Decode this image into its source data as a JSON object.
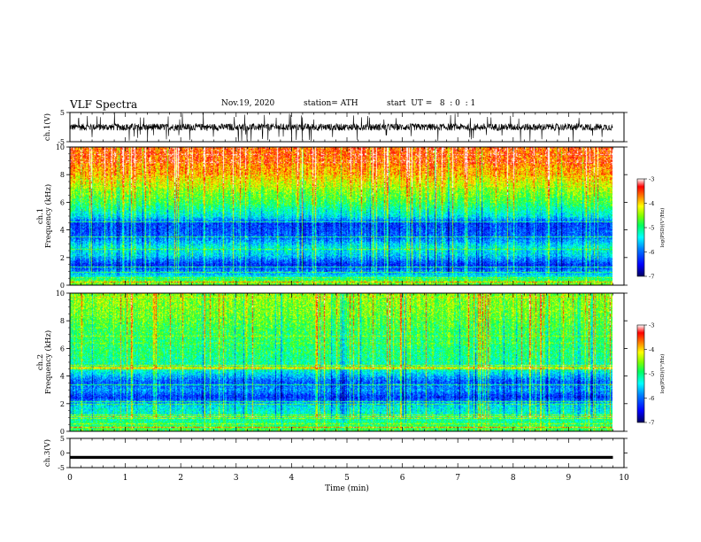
{
  "header": {
    "title": "VLF Spectra",
    "date": "Nov.19, 2020",
    "station": "station= ATH",
    "start": "start  UT =   8  : 0  : 1"
  },
  "colors": {
    "background": "#ffffff",
    "axis": "#000000",
    "trace": "#000000",
    "colormap": [
      "#000080",
      "#0000ff",
      "#0080ff",
      "#00ffff",
      "#00ff80",
      "#80ff00",
      "#ffff00",
      "#ff8000",
      "#ff0000",
      "#ffffff"
    ]
  },
  "chart_data": [
    {
      "type": "line",
      "id": "ch1-waveform",
      "ylabel": "ch.1(V)",
      "yticks": [
        "5",
        "-5"
      ],
      "ylim": [
        -5,
        5
      ],
      "x_unit": "min",
      "xlim": [
        0,
        10
      ],
      "data_extent_x": [
        0,
        9.8
      ],
      "signal": "noisy waveform roughly between -2 and +2 V with spikes"
    },
    {
      "type": "heatmap",
      "id": "ch1-spectrogram",
      "ylabel": "ch.1\nFrequency  (kHz)",
      "ylim": [
        0,
        10
      ],
      "yticks": [
        "0",
        "2",
        "4",
        "6",
        "8",
        "10"
      ],
      "xlim": [
        0,
        10
      ],
      "data_extent_x": [
        0,
        9.8
      ],
      "colorbar": {
        "label": "log(PSD)(V²/Hz)",
        "ticks": [
          "-3",
          "-4",
          "-5",
          "-6",
          "-7"
        ],
        "range": [
          -7,
          -3
        ]
      },
      "band_profile": [
        {
          "f": 0.3,
          "psd": -4.6
        },
        {
          "f": 0.8,
          "psd": -5.6
        },
        {
          "f": 1.5,
          "psd": -6.3
        },
        {
          "f": 2.2,
          "psd": -5.5
        },
        {
          "f": 2.8,
          "psd": -5.3
        },
        {
          "f": 3.5,
          "psd": -6.0
        },
        {
          "f": 4.5,
          "psd": -6.2
        },
        {
          "f": 5.0,
          "psd": -5.4
        },
        {
          "f": 6.0,
          "psd": -4.8
        },
        {
          "f": 7.0,
          "psd": -4.4
        },
        {
          "f": 8.0,
          "psd": -3.9
        },
        {
          "f": 9.0,
          "psd": -3.6
        },
        {
          "f": 10.0,
          "psd": -3.5
        }
      ]
    },
    {
      "type": "heatmap",
      "id": "ch2-spectrogram",
      "ylabel": "ch.2\nFrequency  (kHz)",
      "ylim": [
        0,
        10
      ],
      "yticks": [
        "0",
        "2",
        "4",
        "6",
        "8",
        "10"
      ],
      "xlim": [
        0,
        10
      ],
      "data_extent_x": [
        0,
        9.8
      ],
      "colorbar": {
        "label": "log(PSD)(V²/Hz)",
        "ticks": [
          "-3",
          "-4",
          "-5",
          "-6",
          "-7"
        ],
        "range": [
          -7,
          -3
        ]
      },
      "band_profile": [
        {
          "f": 0.3,
          "psd": -4.8
        },
        {
          "f": 1.0,
          "psd": -5.2
        },
        {
          "f": 1.8,
          "psd": -5.4
        },
        {
          "f": 2.5,
          "psd": -6.3
        },
        {
          "f": 3.0,
          "psd": -5.8
        },
        {
          "f": 3.6,
          "psd": -6.1
        },
        {
          "f": 4.5,
          "psd": -5.2
        },
        {
          "f": 5.5,
          "psd": -5.0
        },
        {
          "f": 6.5,
          "psd": -4.9
        },
        {
          "f": 7.5,
          "psd": -4.8
        },
        {
          "f": 8.5,
          "psd": -4.6
        },
        {
          "f": 9.5,
          "psd": -4.5
        },
        {
          "f": 10.0,
          "psd": -4.5
        }
      ]
    },
    {
      "type": "line",
      "id": "ch3-waveform",
      "ylabel": "ch.3(V)",
      "yticks": [
        "5",
        "0",
        "-5"
      ],
      "ylim": [
        -5,
        5
      ],
      "x_unit": "min",
      "xlim": [
        0,
        10
      ],
      "data_extent_x": [
        0,
        9.8
      ],
      "signal": "flat thick band near -1.5 V"
    }
  ],
  "xaxis": {
    "label": "Time  (min)",
    "ticks": [
      "0",
      "1",
      "2",
      "3",
      "4",
      "5",
      "6",
      "7",
      "8",
      "9",
      "10"
    ]
  }
}
